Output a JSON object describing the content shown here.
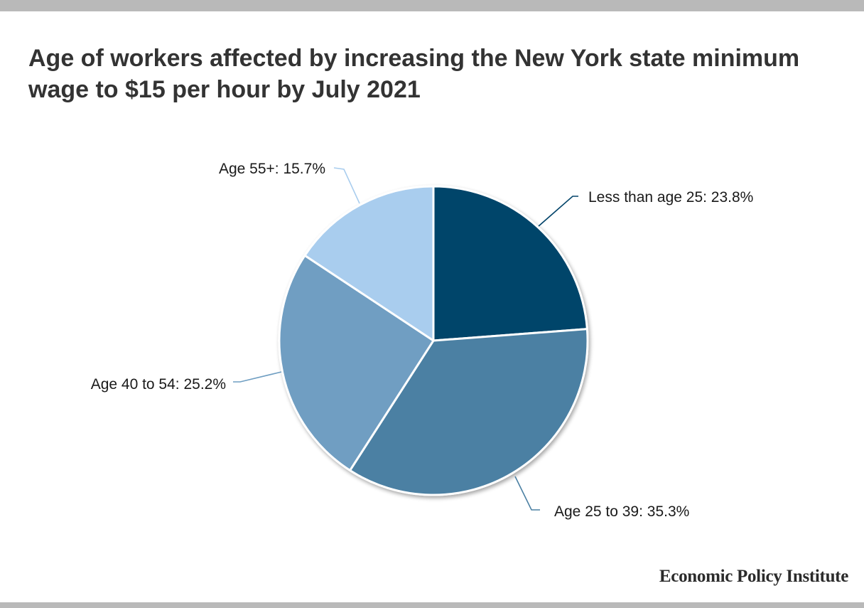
{
  "header": {
    "title": "Age of workers affected by increasing the New York state minimum wage to $15 per hour by July 2021"
  },
  "footer": {
    "source": "Economic Policy Institute"
  },
  "colors": {
    "frame_bar": "#b9b9b9",
    "slice_lt25": "#03446a",
    "slice_25_39": "#4b80a3",
    "slice_40_54": "#6f9ec2",
    "slice_55plus": "#a9cdee"
  },
  "chart_data": {
    "type": "pie",
    "title": "Age of workers affected by increasing the New York state minimum wage to $15 per hour by July 2021",
    "slices": [
      {
        "label": "Less than age 25: 23.8%",
        "value": 23.8,
        "color": "#03446a"
      },
      {
        "label": "Age 25 to 39: 35.3%",
        "value": 35.3,
        "color": "#4b80a3"
      },
      {
        "label": "Age 40 to 54: 25.2%",
        "value": 25.2,
        "color": "#6f9ec2"
      },
      {
        "label": "Age 55+: 15.7%",
        "value": 15.7,
        "color": "#a9cdee"
      }
    ],
    "start": "12 o'clock",
    "direction": "clockwise",
    "legend": "none"
  }
}
